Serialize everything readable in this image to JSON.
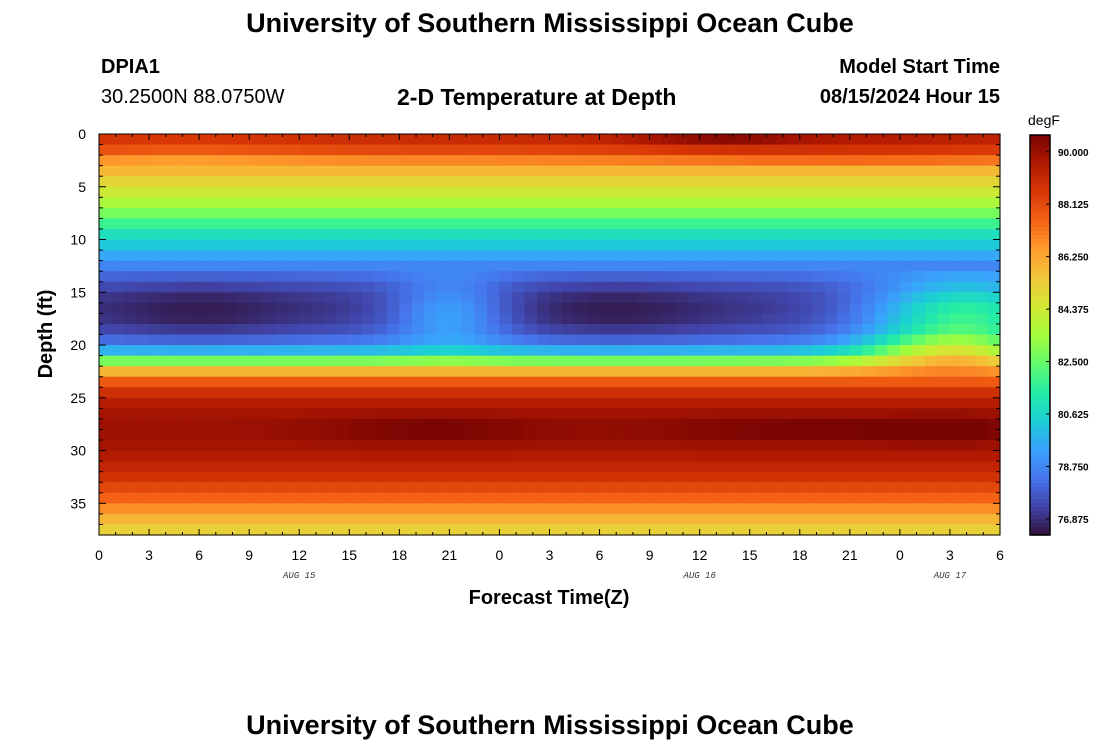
{
  "page": {
    "title_top": "University of Southern Mississippi Ocean Cube",
    "title_bottom": "University of Southern Mississippi Ocean Cube",
    "station_id": "DPIA1",
    "station_coords": "30.2500N  88.0750W",
    "subtitle": "2-D Temperature at Depth",
    "model_start_label": "Model Start Time",
    "model_start_value": "08/15/2024 Hour 15"
  },
  "chart_data": {
    "type": "heatmap",
    "title": "2-D Temperature at Depth",
    "xlabel": "Forecast Time(Z)",
    "ylabel": "Depth (ft)",
    "x_tick_labels": [
      "0",
      "3",
      "6",
      "9",
      "12",
      "15",
      "18",
      "21",
      "0",
      "3",
      "6",
      "9",
      "12",
      "15",
      "18",
      "21",
      "0",
      "3",
      "6"
    ],
    "x_range_hours": [
      0,
      54
    ],
    "date_labels": [
      {
        "label": "AUG 15",
        "hour": 12
      },
      {
        "label": "AUG 16",
        "hour": 36
      },
      {
        "label": "AUG 17",
        "hour": 51
      }
    ],
    "y_ticks": [
      0,
      5,
      10,
      15,
      20,
      25,
      30,
      35
    ],
    "y_range": [
      0,
      38
    ],
    "colorbar": {
      "unit": "degF",
      "labels": [
        "90.000",
        "88.125",
        "86.250",
        "84.375",
        "82.500",
        "80.625",
        "78.750",
        "76.875"
      ],
      "min": 76.3,
      "max": 90.6,
      "colors": [
        "#30123b",
        "#4145ab",
        "#4675ed",
        "#39a2fc",
        "#1bcfd4",
        "#24eca6",
        "#61fc6c",
        "#a4fc3b",
        "#d1e834",
        "#f3c63a",
        "#fe9b2d",
        "#f36315",
        "#d93806",
        "#b11901",
        "#7a0403"
      ]
    },
    "depth_profile": {
      "depth_ft": [
        0,
        1,
        2,
        3,
        4,
        5,
        6,
        7,
        8,
        9,
        10,
        11,
        12,
        13,
        14,
        15,
        16,
        17,
        18,
        19,
        20,
        21,
        22,
        23,
        24,
        25,
        26,
        27,
        28,
        29,
        30,
        31,
        32,
        33,
        34,
        35,
        36,
        37,
        38
      ],
      "temperature_degF": [
        89.1,
        88.8,
        87.6,
        86.2,
        85.4,
        84.7,
        84.0,
        83.2,
        82.3,
        81.3,
        80.6,
        79.9,
        79.1,
        78.4,
        77.8,
        77.3,
        77.1,
        77.1,
        77.3,
        77.8,
        78.8,
        80.8,
        84.8,
        87.0,
        88.5,
        89.2,
        89.7,
        89.9,
        90.0,
        89.9,
        89.7,
        89.4,
        89.0,
        88.5,
        87.9,
        87.2,
        86.3,
        85.5,
        84.8
      ]
    }
  }
}
